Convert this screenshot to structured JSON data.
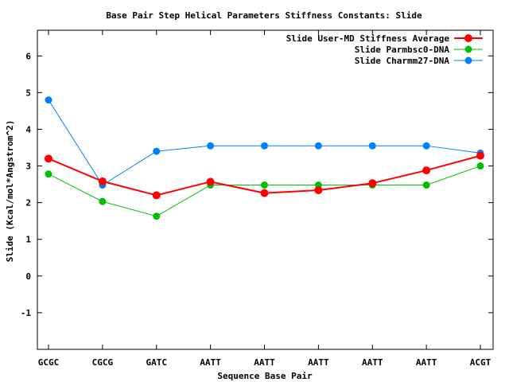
{
  "chart_data": {
    "type": "line",
    "title": "Base Pair Step Helical Parameters Stiffness Constants: Slide",
    "xlabel": "Sequence Base Pair",
    "ylabel": "Slide (Kcal/mol*Angstrom^2)",
    "categories": [
      "GCGC",
      "CGCG",
      "GATC",
      "AATT",
      "AATT",
      "AATT",
      "AATT",
      "AATT",
      "ACGT"
    ],
    "ylim": [
      -2,
      6.7
    ],
    "yticks": [
      "-1",
      "0",
      "1",
      "2",
      "3",
      "4",
      "5",
      "6"
    ],
    "grid": false,
    "legend_position": "top-right",
    "series": [
      {
        "name": "Slide User-MD Stiffness Average",
        "color": "#ff0000",
        "values": [
          3.2,
          2.58,
          2.2,
          2.57,
          2.26,
          2.34,
          2.53,
          2.88,
          3.28
        ]
      },
      {
        "name": "Slide Parmbsc0-DNA",
        "color": "#00c000",
        "values": [
          2.78,
          2.03,
          1.63,
          2.48,
          2.48,
          2.48,
          2.48,
          2.48,
          3.0
        ]
      },
      {
        "name": "Slide Charmm27-DNA",
        "color": "#0080ff",
        "values": [
          4.8,
          2.48,
          3.4,
          3.55,
          3.55,
          3.55,
          3.55,
          3.55,
          3.35
        ]
      }
    ]
  }
}
